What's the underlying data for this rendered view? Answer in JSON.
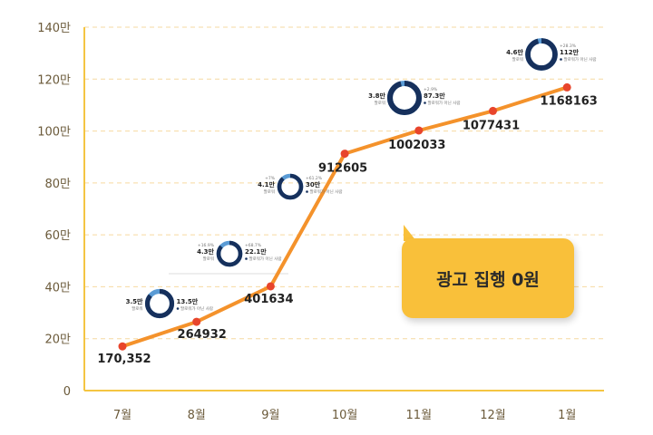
{
  "chart_data": {
    "type": "line",
    "categories": [
      "7월",
      "8월",
      "9월",
      "10월",
      "11월",
      "12월",
      "1월"
    ],
    "values": [
      170352,
      264932,
      401634,
      912605,
      1002033,
      1077431,
      1168163
    ],
    "data_labels": [
      "170,352",
      "264932",
      "401634",
      "912605",
      "1002033",
      "1077431",
      "1168163"
    ],
    "y_ticks": [
      {
        "value": 0,
        "label": "0"
      },
      {
        "value": 200000,
        "label": "20만"
      },
      {
        "value": 400000,
        "label": "40만"
      },
      {
        "value": 600000,
        "label": "60만"
      },
      {
        "value": 800000,
        "label": "80만"
      },
      {
        "value": 1000000,
        "label": "100만"
      },
      {
        "value": 1200000,
        "label": "120만"
      },
      {
        "value": 1400000,
        "label": "140만"
      }
    ],
    "ylim": [
      0,
      1400000
    ],
    "grid": true,
    "title": "",
    "xlabel": "",
    "ylabel": "",
    "annotation": "광고 집행 0원",
    "mini_donuts": [
      {
        "after_category": "7월",
        "value": 0.86,
        "left_top": "3.5만",
        "left_sub": "팔로워",
        "right_top": "13.5만",
        "right_sub": "팔로워가 아닌 사람",
        "right_pct": ""
      },
      {
        "after_category": "8월",
        "value": 0.86,
        "left_top": "4.3만",
        "left_sub": "팔로워",
        "left_pct": "+16.9%",
        "right_top": "22.1만",
        "right_sub": "팔로워가 아닌 사람",
        "right_pct": "+68.7%"
      },
      {
        "after_category": "9월",
        "value": 0.88,
        "left_top": "4.1만",
        "left_sub": "팔로워",
        "left_pct": "+7%",
        "right_top": "30만",
        "right_sub": "팔로워가 아닌 사람",
        "right_pct": "+61.2%"
      },
      {
        "after_category": "11월",
        "value": 0.96,
        "left_top": "3.8만",
        "left_sub": "팔로워",
        "right_top": "87.3만",
        "right_sub": "팔로워가 아닌 사람",
        "right_pct": "+2.9%"
      },
      {
        "after_category": "1월",
        "value": 0.96,
        "left_top": "4.6만",
        "left_sub": "팔로워",
        "right_top": "112만",
        "right_sub": "팔로워가 아닌 사람",
        "right_pct": "+28.3%"
      }
    ],
    "colors": {
      "line": "#f4922b",
      "point": "#e8452c",
      "axis": "#f4c542",
      "grid": "#f6d9a0",
      "donut": "#16305c",
      "donut_light": "#5a9bd5"
    }
  }
}
